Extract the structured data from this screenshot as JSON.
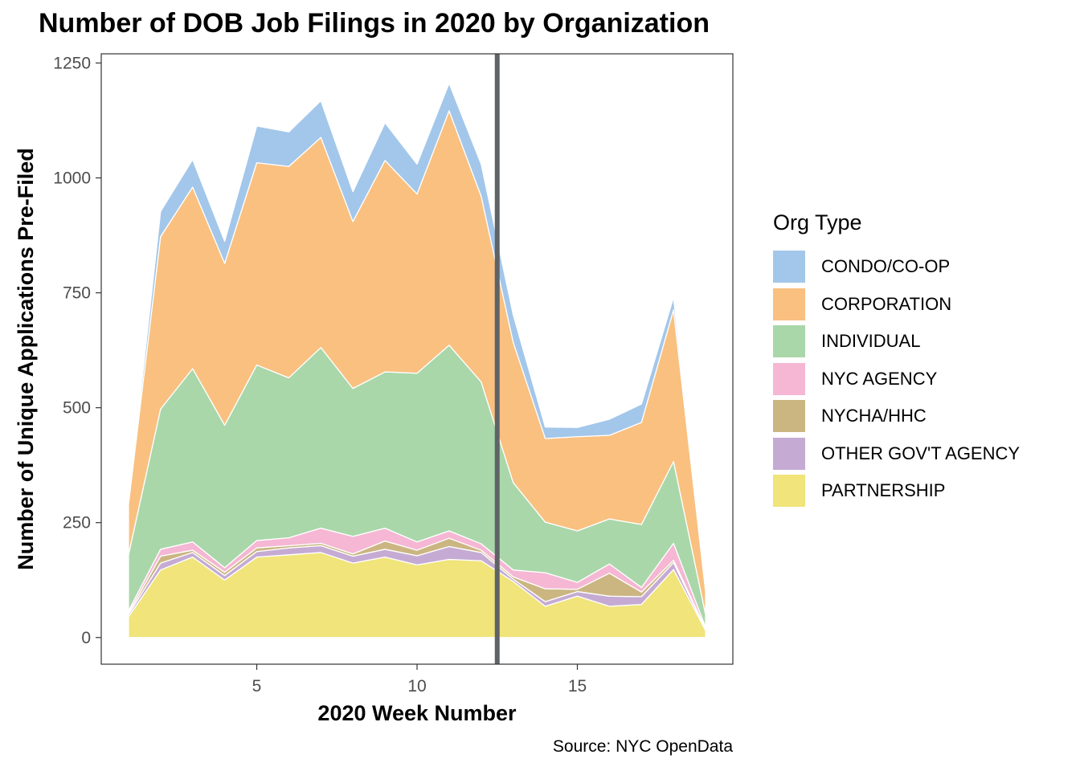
{
  "title": "Number of DOB Job Filings in 2020 by Organization",
  "caption": "Source: NYC OpenData",
  "legend": {
    "title": "Org Type",
    "items": [
      {
        "label": "CONDO/CO-OP",
        "color": "#a3c7ea"
      },
      {
        "label": "CORPORATION",
        "color": "#f9c080"
      },
      {
        "label": "INDIVIDUAL",
        "color": "#a9d7aa"
      },
      {
        "label": "NYC AGENCY",
        "color": "#f5b7d3"
      },
      {
        "label": "NYCHA/HHC",
        "color": "#cbb682"
      },
      {
        "label": "OTHER GOV'T AGENCY",
        "color": "#c5abd3"
      },
      {
        "label": "PARTNERSHIP",
        "color": "#f0e47a"
      }
    ]
  },
  "chart_data": {
    "type": "area",
    "stacked": true,
    "title": "Number of DOB Job Filings in 2020 by Organization",
    "xlabel": "2020 Week Number",
    "ylabel": "Number of Unique Applications Pre-Filed",
    "x": [
      1,
      2,
      3,
      4,
      5,
      6,
      7,
      8,
      9,
      10,
      11,
      12,
      13,
      14,
      15,
      16,
      17,
      18,
      19
    ],
    "xlim": [
      0.15,
      19.85
    ],
    "ylim": [
      -58,
      1270
    ],
    "xticks": [
      5,
      10,
      15
    ],
    "yticks": [
      0,
      250,
      500,
      750,
      1000,
      1250
    ],
    "vline": 12.5,
    "grid": false,
    "legend_position": "right",
    "series": [
      {
        "name": "PARTNERSHIP",
        "color": "#f0e47a",
        "values": [
          45,
          147,
          175,
          125,
          175,
          180,
          185,
          162,
          175,
          158,
          170,
          167,
          122,
          68,
          90,
          68,
          72,
          148,
          15
        ]
      },
      {
        "name": "OTHER GOV'T AGENCY",
        "color": "#c5abd3",
        "values": [
          5,
          15,
          10,
          10,
          12,
          15,
          15,
          15,
          17,
          20,
          28,
          18,
          5,
          10,
          10,
          22,
          17,
          15,
          2
        ]
      },
      {
        "name": "NYCHA/HHC",
        "color": "#cbb682",
        "values": [
          3,
          15,
          5,
          7,
          8,
          5,
          5,
          5,
          18,
          12,
          18,
          5,
          5,
          28,
          5,
          50,
          10,
          5,
          2
        ]
      },
      {
        "name": "NYC AGENCY",
        "color": "#f5b7d3",
        "values": [
          5,
          15,
          18,
          10,
          16,
          17,
          33,
          38,
          28,
          18,
          16,
          14,
          15,
          35,
          15,
          20,
          10,
          37,
          3
        ]
      },
      {
        "name": "INDIVIDUAL",
        "color": "#a9d7aa",
        "values": [
          122,
          305,
          377,
          310,
          382,
          348,
          393,
          322,
          340,
          367,
          404,
          352,
          190,
          110,
          112,
          98,
          137,
          178,
          28
        ]
      },
      {
        "name": "CORPORATION",
        "color": "#f9c080",
        "values": [
          110,
          375,
          395,
          352,
          440,
          460,
          457,
          363,
          460,
          390,
          510,
          404,
          305,
          182,
          205,
          182,
          222,
          330,
          50
        ]
      },
      {
        "name": "CONDO/CO-OP",
        "color": "#a3c7ea",
        "values": [
          0,
          55,
          60,
          48,
          80,
          75,
          80,
          65,
          82,
          65,
          60,
          70,
          60,
          25,
          20,
          35,
          40,
          27,
          0
        ]
      }
    ]
  }
}
